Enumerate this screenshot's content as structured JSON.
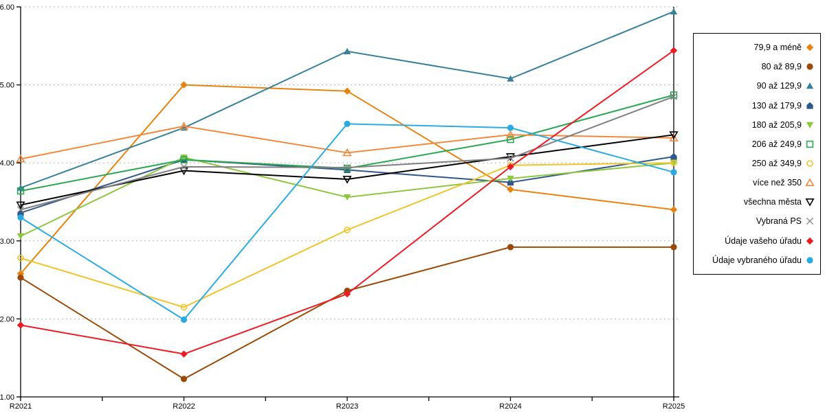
{
  "chart_data": {
    "type": "line",
    "title": "",
    "xlabel": "",
    "ylabel": "",
    "categories": [
      "R2021",
      "R2022",
      "R2023",
      "R2024",
      "R2025"
    ],
    "y_tick_labels": [
      "1.00",
      "2.00",
      "3.00",
      "4.00",
      "5.00",
      "6.00"
    ],
    "ylim": [
      1.0,
      6.0
    ],
    "grid": "horizontal dotted gray",
    "legend_position": "right",
    "axis_color": "#000000",
    "gridline_color": "#b3b3b3",
    "series": [
      {
        "name": "79,9 a méně",
        "color": "#e8820e",
        "marker": "diamond",
        "filled": true,
        "values": [
          2.58,
          5.0,
          4.92,
          3.66,
          3.4
        ]
      },
      {
        "name": "80 až 89,9",
        "color": "#9a4a06",
        "marker": "circle",
        "filled": true,
        "values": [
          2.53,
          1.23,
          2.36,
          2.92,
          2.92
        ]
      },
      {
        "name": "90 až 129,9",
        "color": "#37809c",
        "marker": "triangle",
        "filled": true,
        "values": [
          3.68,
          4.45,
          5.43,
          5.08,
          5.94
        ]
      },
      {
        "name": "130 až 179,9",
        "color": "#31588a",
        "marker": "pentagon",
        "filled": true,
        "values": [
          3.36,
          4.04,
          3.91,
          3.75,
          4.08
        ]
      },
      {
        "name": "180 až 205,9",
        "color": "#8dc63f",
        "marker": "triangle-down",
        "filled": true,
        "values": [
          3.06,
          4.07,
          3.56,
          3.8,
          4.0
        ]
      },
      {
        "name": "206 až 249,9",
        "color": "#29a853",
        "marker": "square",
        "filled": false,
        "values": [
          3.64,
          4.04,
          3.93,
          4.3,
          4.87
        ]
      },
      {
        "name": "250 až 349,9",
        "color": "#f0c428",
        "marker": "circle",
        "filled": false,
        "values": [
          2.78,
          2.15,
          3.14,
          3.97,
          4.0
        ]
      },
      {
        "name": "více než 350",
        "color": "#f1883c",
        "marker": "triangle",
        "filled": false,
        "values": [
          4.05,
          4.47,
          4.13,
          4.36,
          4.32
        ]
      },
      {
        "name": "všechna města",
        "color": "#000000",
        "marker": "triangle-down",
        "filled": false,
        "values": [
          3.46,
          3.9,
          3.79,
          4.08,
          4.36
        ]
      },
      {
        "name": "Vybraná PS",
        "color": "#7f7f7f",
        "marker": "x",
        "filled": false,
        "values": [
          3.4,
          3.95,
          3.94,
          4.06,
          4.85
        ]
      },
      {
        "name": "Údaje vašeho úřadu",
        "color": "#ec1c24",
        "marker": "diamond",
        "filled": true,
        "values": [
          1.92,
          1.55,
          2.32,
          3.95,
          5.44
        ]
      },
      {
        "name": "Údaje vybraného úřadu",
        "color": "#29abe2",
        "marker": "circle",
        "filled": true,
        "values": [
          3.3,
          1.99,
          4.5,
          4.45,
          3.88
        ]
      }
    ]
  }
}
